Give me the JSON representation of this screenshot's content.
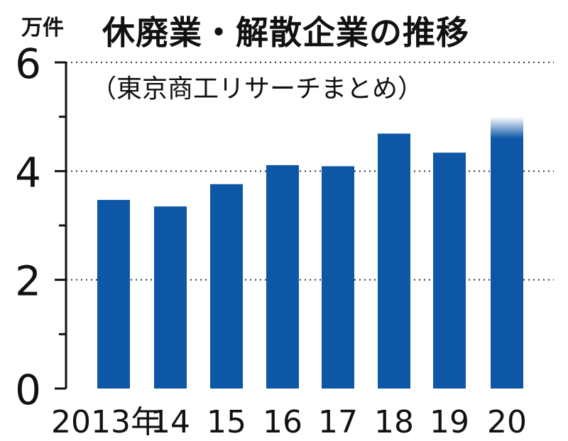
{
  "unit_label": "万件",
  "title": "休廃業・解散企業の推移",
  "subtitle": "（東京商工リサーチまとめ）",
  "colors": {
    "bar": "#0d57a6",
    "axis": "#111111",
    "grid": "#333333"
  },
  "chart_data": {
    "type": "bar",
    "title": "休廃業・解散企業の推移",
    "subtitle": "（東京商工リサーチまとめ）",
    "ylabel": "万件",
    "categories": [
      "2013年",
      "14",
      "15",
      "16",
      "17",
      "18",
      "19",
      "20"
    ],
    "values": [
      3.47,
      3.35,
      3.76,
      4.11,
      4.09,
      4.69,
      4.34,
      5.0
    ],
    "ylim": [
      0,
      6
    ],
    "yticks": [
      "0",
      "2",
      "4",
      "6"
    ],
    "grid": "dotted lines at 2, 4, 6",
    "last_bar_faded_top": true
  }
}
